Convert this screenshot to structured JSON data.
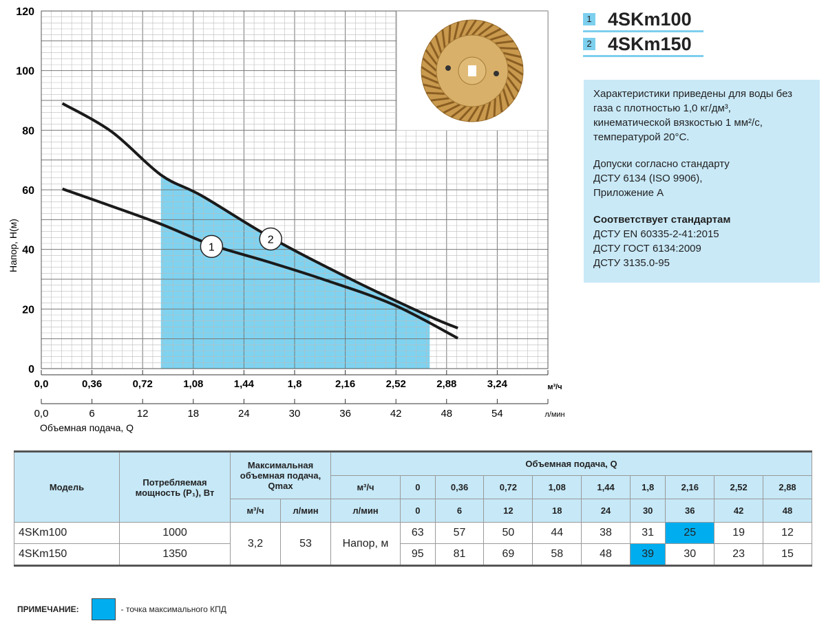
{
  "chart_data": {
    "type": "line",
    "title": "",
    "ylabel": "Напор, H(м)",
    "xlabel": "Объемная подача, Q",
    "xlim": [
      0,
      3.6
    ],
    "ylim": [
      0,
      120
    ],
    "yticks": [
      "0",
      "20",
      "40",
      "60",
      "80",
      "100",
      "120"
    ],
    "xticks_m3h": [
      "0,0",
      "0,36",
      "0,72",
      "1,08",
      "1,44",
      "1,8",
      "2,16",
      "2,52",
      "2,88",
      "3,24"
    ],
    "x_unit_m3h": "м³/ч",
    "xticks_lmin": [
      "0,0",
      "6",
      "12",
      "18",
      "24",
      "30",
      "36",
      "42",
      "48",
      "54"
    ],
    "x_unit_lmin": "л/мин",
    "series": [
      {
        "name": "1",
        "x": [
          0.15,
          0.5,
          0.85,
          1.21,
          1.6,
          2.0,
          2.5,
          2.96
        ],
        "y": [
          60.3,
          54.5,
          48.5,
          41.5,
          36,
          30,
          21.5,
          10.2
        ]
      },
      {
        "name": "2",
        "x": [
          0.15,
          0.5,
          0.85,
          1.14,
          1.63,
          2.2,
          2.76,
          2.96
        ],
        "y": [
          89,
          79.5,
          65,
          58,
          44,
          30,
          17.5,
          13.6
        ]
      }
    ],
    "labels": [
      {
        "text": "1",
        "x": 1.21,
        "y": 41
      },
      {
        "text": "2",
        "x": 1.63,
        "y": 43.5
      }
    ],
    "shaded_range": [
      0.85,
      2.76
    ],
    "grid": true
  },
  "legend": [
    {
      "num": "1",
      "name": "4SKm100"
    },
    {
      "num": "2",
      "name": "4SKm150"
    }
  ],
  "info": {
    "p1": "Характеристики приведены для воды без газа с плотностью 1,0 кг/дм³, кинематической вязкостью 1 мм²/с, температурой 20°С.",
    "p2": [
      "Допуски согласно стандарту",
      "ДСТУ 6134 (ISO 9906),",
      "Приложение А"
    ],
    "p3_title": "Соответствует стандартам",
    "p3": [
      "ДСТУ EN 60335-2-41:2015",
      "ДСТУ ГОСТ 6134:2009",
      "ДСТУ 3135.0-95"
    ]
  },
  "table": {
    "h_model": "Модель",
    "h_power": "Потребляемая мощность (P₁), Вт",
    "h_qmax": "Максимальная объемная подача, Qmax",
    "h_flow": "Объемная подача, Q",
    "u_m3h": "м³/ч",
    "u_lmin": "л/мин",
    "flow_m3h": [
      "0",
      "0,36",
      "0,72",
      "1,08",
      "1,44",
      "1,8",
      "2,16",
      "2,52",
      "2,88"
    ],
    "flow_lmin": [
      "0",
      "6",
      "12",
      "18",
      "24",
      "30",
      "36",
      "42",
      "48"
    ],
    "qmax_m3h": "3,2",
    "qmax_lmin": "53",
    "head_label": "Напор, м",
    "rows": [
      {
        "model": "4SKm100",
        "power": "1000",
        "head": [
          "63",
          "57",
          "50",
          "44",
          "38",
          "31",
          "25",
          "19",
          "12"
        ],
        "hl": 6
      },
      {
        "model": "4SKm150",
        "power": "1350",
        "head": [
          "95",
          "81",
          "69",
          "58",
          "48",
          "39",
          "30",
          "23",
          "15"
        ],
        "hl": 5
      }
    ]
  },
  "note": {
    "label": "ПРИМЕЧАНИЕ:",
    "text": "- точка максимального КПД"
  },
  "colors": {
    "fill": "#7fd3f0",
    "highlight": "#00aeef",
    "header": "#c6e8f7"
  }
}
